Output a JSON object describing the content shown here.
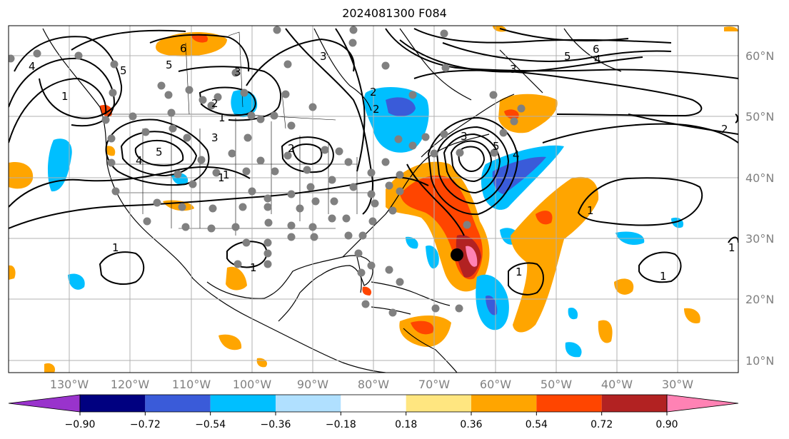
{
  "title": "2024081300 F084",
  "latitude_labels": [
    "60°N",
    "50°N",
    "40°N",
    "30°N",
    "20°N",
    "10°N"
  ],
  "longitude_labels": [
    "130°W",
    "120°W",
    "110°W",
    "100°W",
    "90°W",
    "80°W",
    "70°W",
    "60°W",
    "50°W",
    "40°W",
    "30°W"
  ],
  "colorbar": {
    "ticks": [
      "−0.90",
      "−0.72",
      "−0.54",
      "−0.36",
      "−0.18",
      "0.18",
      "0.36",
      "0.54",
      "0.72",
      "0.90"
    ],
    "colors": [
      "#9933cc",
      "#000080",
      "#3a5bd9",
      "#00bfff",
      "#b0e0ff",
      "#ffffff",
      "#ffe680",
      "#ffa500",
      "#ff4500",
      "#b22222",
      "#ff82b4"
    ]
  },
  "contour_labels": [
    "6",
    "5",
    "4",
    "3",
    "2",
    "1",
    "1",
    "4",
    "5",
    "3",
    "2",
    "1",
    "1",
    "3",
    "2",
    "5",
    "6",
    "4",
    "3",
    "5",
    "4",
    "3",
    "2",
    "1",
    "1",
    "1",
    "1",
    "1",
    "1",
    "5",
    "2"
  ],
  "storm_marker": "black dot",
  "colors": {
    "land_outline": "#000000",
    "grid": "#b0b0b0",
    "station_dots": "#808080"
  }
}
